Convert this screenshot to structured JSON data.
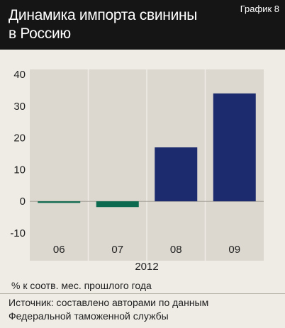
{
  "header": {
    "title": "Динамика импорта свинины\nв Россию",
    "label": "График 8"
  },
  "colors": {
    "positive": "#1c2b6e",
    "negative": "#0c6b4f",
    "header_bg": "#151515",
    "panel_bg": "#efece6",
    "plot_bg": "#dcd8d0"
  },
  "chart_data": {
    "type": "bar",
    "categories": [
      "06",
      "07",
      "08",
      "09"
    ],
    "group_label": "2012",
    "values": [
      -0.5,
      -1.8,
      17.0,
      34.0
    ],
    "ylim": [
      -10,
      40
    ],
    "yticks": [
      40,
      30,
      20,
      10,
      0,
      -10
    ],
    "ylabel": "% к соотв. мес. прошлого года",
    "grid": false
  },
  "footer": {
    "source": "Источник: составлено авторами по данным\nФедеральной таможенной службы"
  }
}
